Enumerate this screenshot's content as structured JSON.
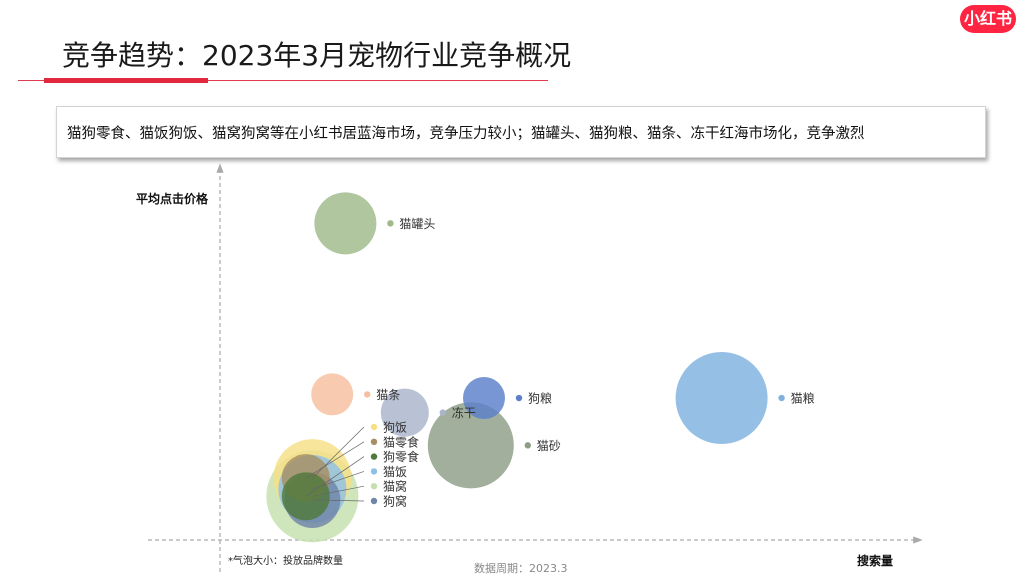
{
  "header": {
    "title": "竞争趋势：2023年3月宠物行业竞争概况",
    "logo_text": "小红书",
    "logo_color": "#ff2442"
  },
  "banner": {
    "text": "猫狗零食、猫饭狗饭、猫窝狗窝等在小红书居蓝海市场，竞争压力较小；猫罐头、猫狗粮、猫条、冻干红海市场化，竞争激烈"
  },
  "footer": {
    "bubble_note": "*气泡大小：投放品牌数量",
    "period": "数据周期：2023.3"
  },
  "chart_data": {
    "type": "scatter",
    "variant": "bubble",
    "title": "",
    "xlabel": "搜索量",
    "ylabel": "平均点击价格",
    "axis_ticks": "none",
    "grid": false,
    "legend": "labels beside each bubble",
    "xlim": [
      0,
      100
    ],
    "ylim": [
      0,
      100
    ],
    "size_meaning": "投放品牌数量",
    "series": [
      {
        "name": "猫罐头",
        "x": 19,
        "y": 87,
        "size": 31,
        "color": "#9fb98a"
      },
      {
        "name": "猫条",
        "x": 17,
        "y": 40,
        "size": 21,
        "color": "#f6bfa0"
      },
      {
        "name": "冻干",
        "x": 28,
        "y": 35,
        "size": 24,
        "color": "#a9b4cb"
      },
      {
        "name": "狗粮",
        "x": 40,
        "y": 39,
        "size": 21,
        "color": "#5b7fcb"
      },
      {
        "name": "猫粮",
        "x": 76,
        "y": 39,
        "size": 46,
        "color": "#7fb1df"
      },
      {
        "name": "猫砂",
        "x": 38,
        "y": 26,
        "size": 43,
        "color": "#8e9d86"
      },
      {
        "name": "狗饭",
        "x": 14,
        "y": 17,
        "size": 39,
        "color": "#f7df86"
      },
      {
        "name": "猫零食",
        "x": 13,
        "y": 17,
        "size": 24,
        "color": "#a78f63"
      },
      {
        "name": "狗零食",
        "x": 13,
        "y": 12,
        "size": 24,
        "color": "#4f7a3c"
      },
      {
        "name": "猫饭",
        "x": 14,
        "y": 14,
        "size": 34,
        "color": "#8ec0e6"
      },
      {
        "name": "猫窝",
        "x": 14,
        "y": 12,
        "size": 46,
        "color": "#c5e0ae"
      },
      {
        "name": "狗窝",
        "x": 14,
        "y": 11,
        "size": 28,
        "color": "#6f84a8"
      }
    ]
  }
}
